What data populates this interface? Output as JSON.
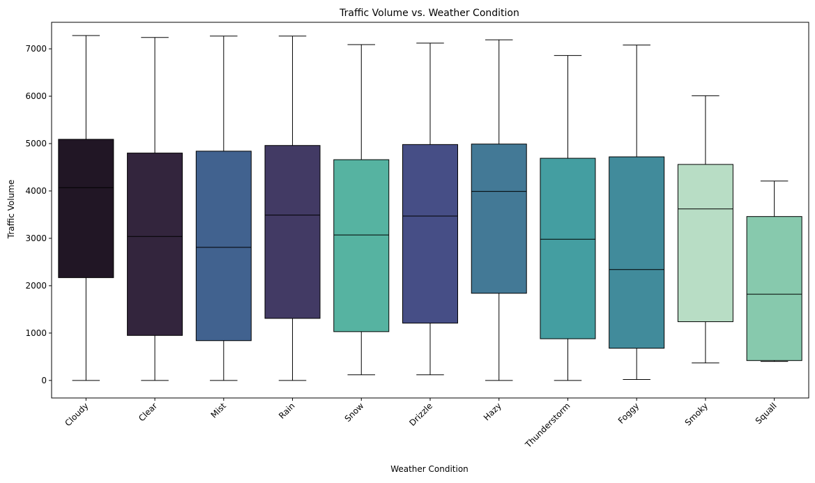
{
  "chart_data": {
    "type": "box",
    "title": "Traffic Volume vs. Weather Condition",
    "xlabel": "Weather Condition",
    "ylabel": "Traffic Volume",
    "ylim": [
      -370,
      7560
    ],
    "yticks": [
      0,
      1000,
      2000,
      3000,
      4000,
      5000,
      6000,
      7000
    ],
    "grid": false,
    "categories": [
      "Cloudy",
      "Clear",
      "Mist",
      "Rain",
      "Snow",
      "Drizzle",
      "Hazy",
      "Thunderstorm",
      "Foggy",
      "Smoky",
      "Squall"
    ],
    "boxes": [
      {
        "category": "Cloudy",
        "whisker_low": 0,
        "q1": 2170,
        "median": 4070,
        "q3": 5090,
        "whisker_high": 7280,
        "color": "#211625"
      },
      {
        "category": "Clear",
        "whisker_low": 0,
        "q1": 950,
        "median": 3040,
        "q3": 4800,
        "whisker_high": 7240,
        "color": "#33253d"
      },
      {
        "category": "Mist",
        "whisker_low": 0,
        "q1": 840,
        "median": 2810,
        "q3": 4840,
        "whisker_high": 7270,
        "color": "#41628f"
      },
      {
        "category": "Rain",
        "whisker_low": 0,
        "q1": 1310,
        "median": 3490,
        "q3": 4960,
        "whisker_high": 7270,
        "color": "#423a64"
      },
      {
        "category": "Snow",
        "whisker_low": 120,
        "q1": 1030,
        "median": 3070,
        "q3": 4660,
        "whisker_high": 7090,
        "color": "#56b3a1"
      },
      {
        "category": "Drizzle",
        "whisker_low": 120,
        "q1": 1210,
        "median": 3470,
        "q3": 4980,
        "whisker_high": 7120,
        "color": "#464e86"
      },
      {
        "category": "Hazy",
        "whisker_low": 0,
        "q1": 1840,
        "median": 3990,
        "q3": 4990,
        "whisker_high": 7190,
        "color": "#437996"
      },
      {
        "category": "Thunderstorm",
        "whisker_low": 0,
        "q1": 880,
        "median": 2980,
        "q3": 4690,
        "whisker_high": 6860,
        "color": "#449ea1"
      },
      {
        "category": "Foggy",
        "whisker_low": 20,
        "q1": 680,
        "median": 2340,
        "q3": 4720,
        "whisker_high": 7080,
        "color": "#418b9b"
      },
      {
        "category": "Smoky",
        "whisker_low": 370,
        "q1": 1240,
        "median": 3620,
        "q3": 4560,
        "whisker_high": 6010,
        "color": "#b8ddc5"
      },
      {
        "category": "Squall",
        "whisker_low": 400,
        "q1": 420,
        "median": 1820,
        "q3": 3460,
        "whisker_high": 4210,
        "color": "#87c9ad"
      }
    ]
  }
}
